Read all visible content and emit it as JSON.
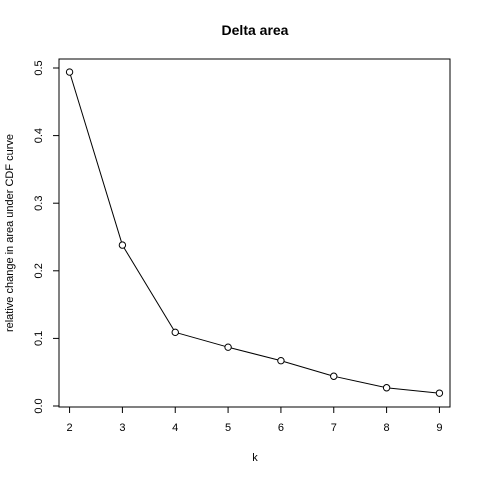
{
  "chart_data": {
    "type": "line",
    "title": "Delta area",
    "xlabel": "k",
    "ylabel": "relative change in area under CDF curve",
    "x": [
      2,
      3,
      4,
      5,
      6,
      7,
      8,
      9
    ],
    "series": [
      {
        "values": [
          0.494,
          0.238,
          0.109,
          0.087,
          0.067,
          0.044,
          0.027,
          0.019
        ]
      }
    ],
    "xlim": [
      1.8,
      9.2
    ],
    "ylim": [
      0,
      0.5
    ],
    "x_ticks": [
      2,
      3,
      4,
      5,
      6,
      7,
      8,
      9
    ],
    "y_ticks": [
      0.0,
      0.1,
      0.2,
      0.3,
      0.4,
      0.5
    ],
    "y_tick_labels": [
      "0.0",
      "0.1",
      "0.2",
      "0.3",
      "0.4",
      "0.5"
    ],
    "grid": false,
    "marker": "open-circle",
    "line_color": "#000000"
  }
}
